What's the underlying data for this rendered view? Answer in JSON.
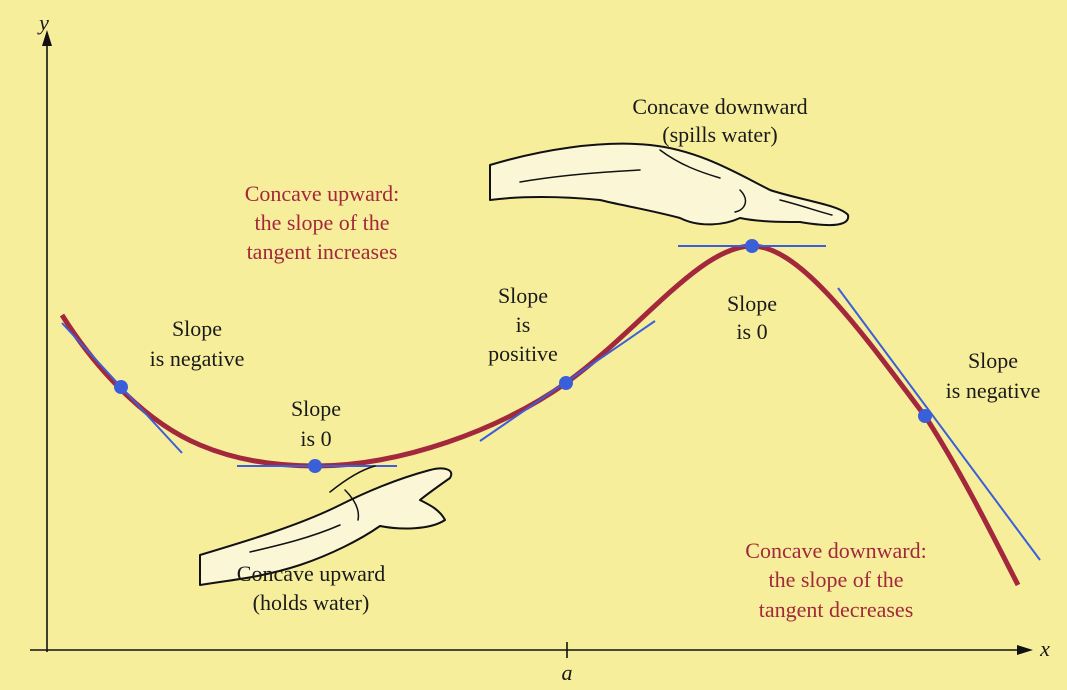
{
  "axes": {
    "y_label": "y",
    "x_label": "x",
    "tick_label": "a"
  },
  "annotations": [
    {
      "lines": [
        "Concave downward",
        "(spills water)"
      ]
    },
    {
      "lines": [
        "Concave upward:",
        "the slope of the",
        "tangent increases"
      ]
    },
    {
      "lines": [
        "Slope",
        "is negative"
      ]
    },
    {
      "lines": [
        "Slope",
        "is 0"
      ]
    },
    {
      "lines": [
        "Slope",
        "is",
        "positive"
      ]
    },
    {
      "lines": [
        "Slope",
        "is 0"
      ]
    },
    {
      "lines": [
        "Slope",
        "is negative"
      ]
    },
    {
      "lines": [
        "Concave upward",
        "(holds water)"
      ]
    },
    {
      "lines": [
        "Concave downward:",
        "the slope of the",
        "tangent decreases"
      ]
    }
  ]
}
